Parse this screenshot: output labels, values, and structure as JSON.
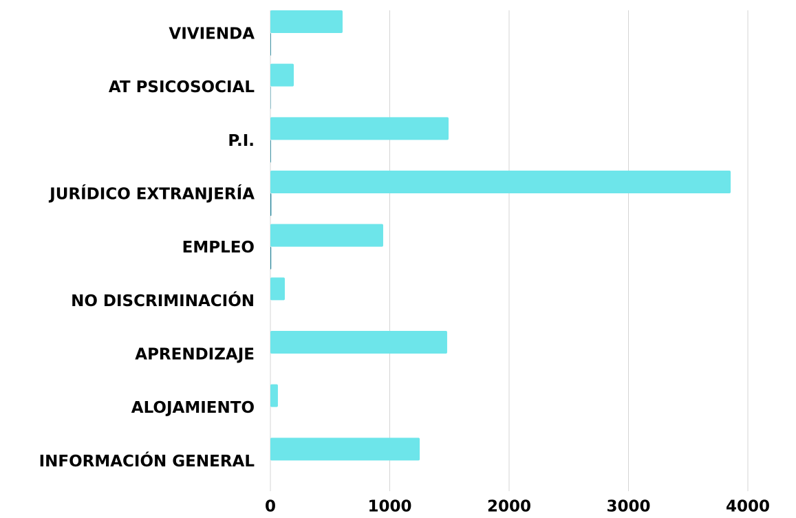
{
  "chart_data": {
    "type": "hbar",
    "categories": [
      "VIVIENDA",
      "AT PSICOSOCIAL",
      "P.I.",
      "JURÍDICO EXTRANJERÍA",
      "EMPLEO",
      "NO DISCRIMINACIÓN",
      "APRENDIZAJE",
      "ALOJAMIENTO",
      "INFORMACIÓN GENERAL"
    ],
    "series": [
      {
        "color": "#6de5ea",
        "values": [
          605,
          196,
          1493,
          3856,
          945,
          121,
          1481,
          63,
          1251
        ]
      },
      {
        "color": "#2a8aa0",
        "values": [
          5,
          3,
          5,
          8,
          7,
          0,
          0,
          0,
          0
        ]
      }
    ],
    "xlim": [
      0,
      4000
    ],
    "xticks": [
      0,
      1000,
      2000,
      3000,
      4000
    ],
    "grid": true
  }
}
